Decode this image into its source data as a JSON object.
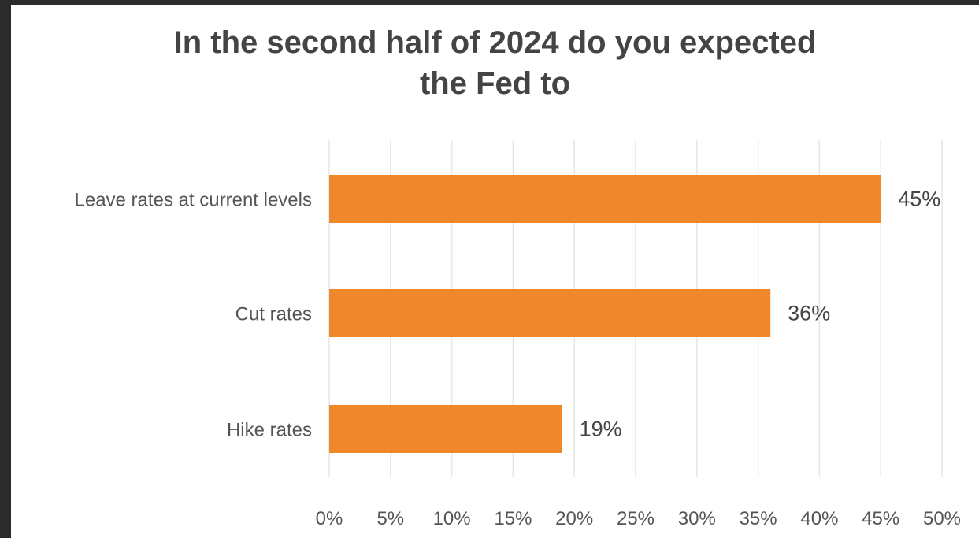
{
  "chart_data": {
    "type": "bar",
    "orientation": "horizontal",
    "title_lines": [
      "In the second half of 2024 do you expected",
      "the Fed to"
    ],
    "categories": [
      "Leave rates at current levels",
      "Cut rates",
      "Hike rates"
    ],
    "values": [
      45,
      36,
      19
    ],
    "value_labels": [
      "45%",
      "36%",
      "19%"
    ],
    "xlim": [
      0,
      50
    ],
    "x_ticks": [
      0,
      5,
      10,
      15,
      20,
      25,
      30,
      35,
      40,
      45,
      50
    ],
    "x_tick_labels": [
      "0%",
      "5%",
      "10%",
      "15%",
      "20%",
      "25%",
      "30%",
      "35%",
      "40%",
      "45%",
      "50%"
    ],
    "grid": true,
    "bar_color": "#f0872a",
    "grid_color": "#e6e6e6"
  }
}
